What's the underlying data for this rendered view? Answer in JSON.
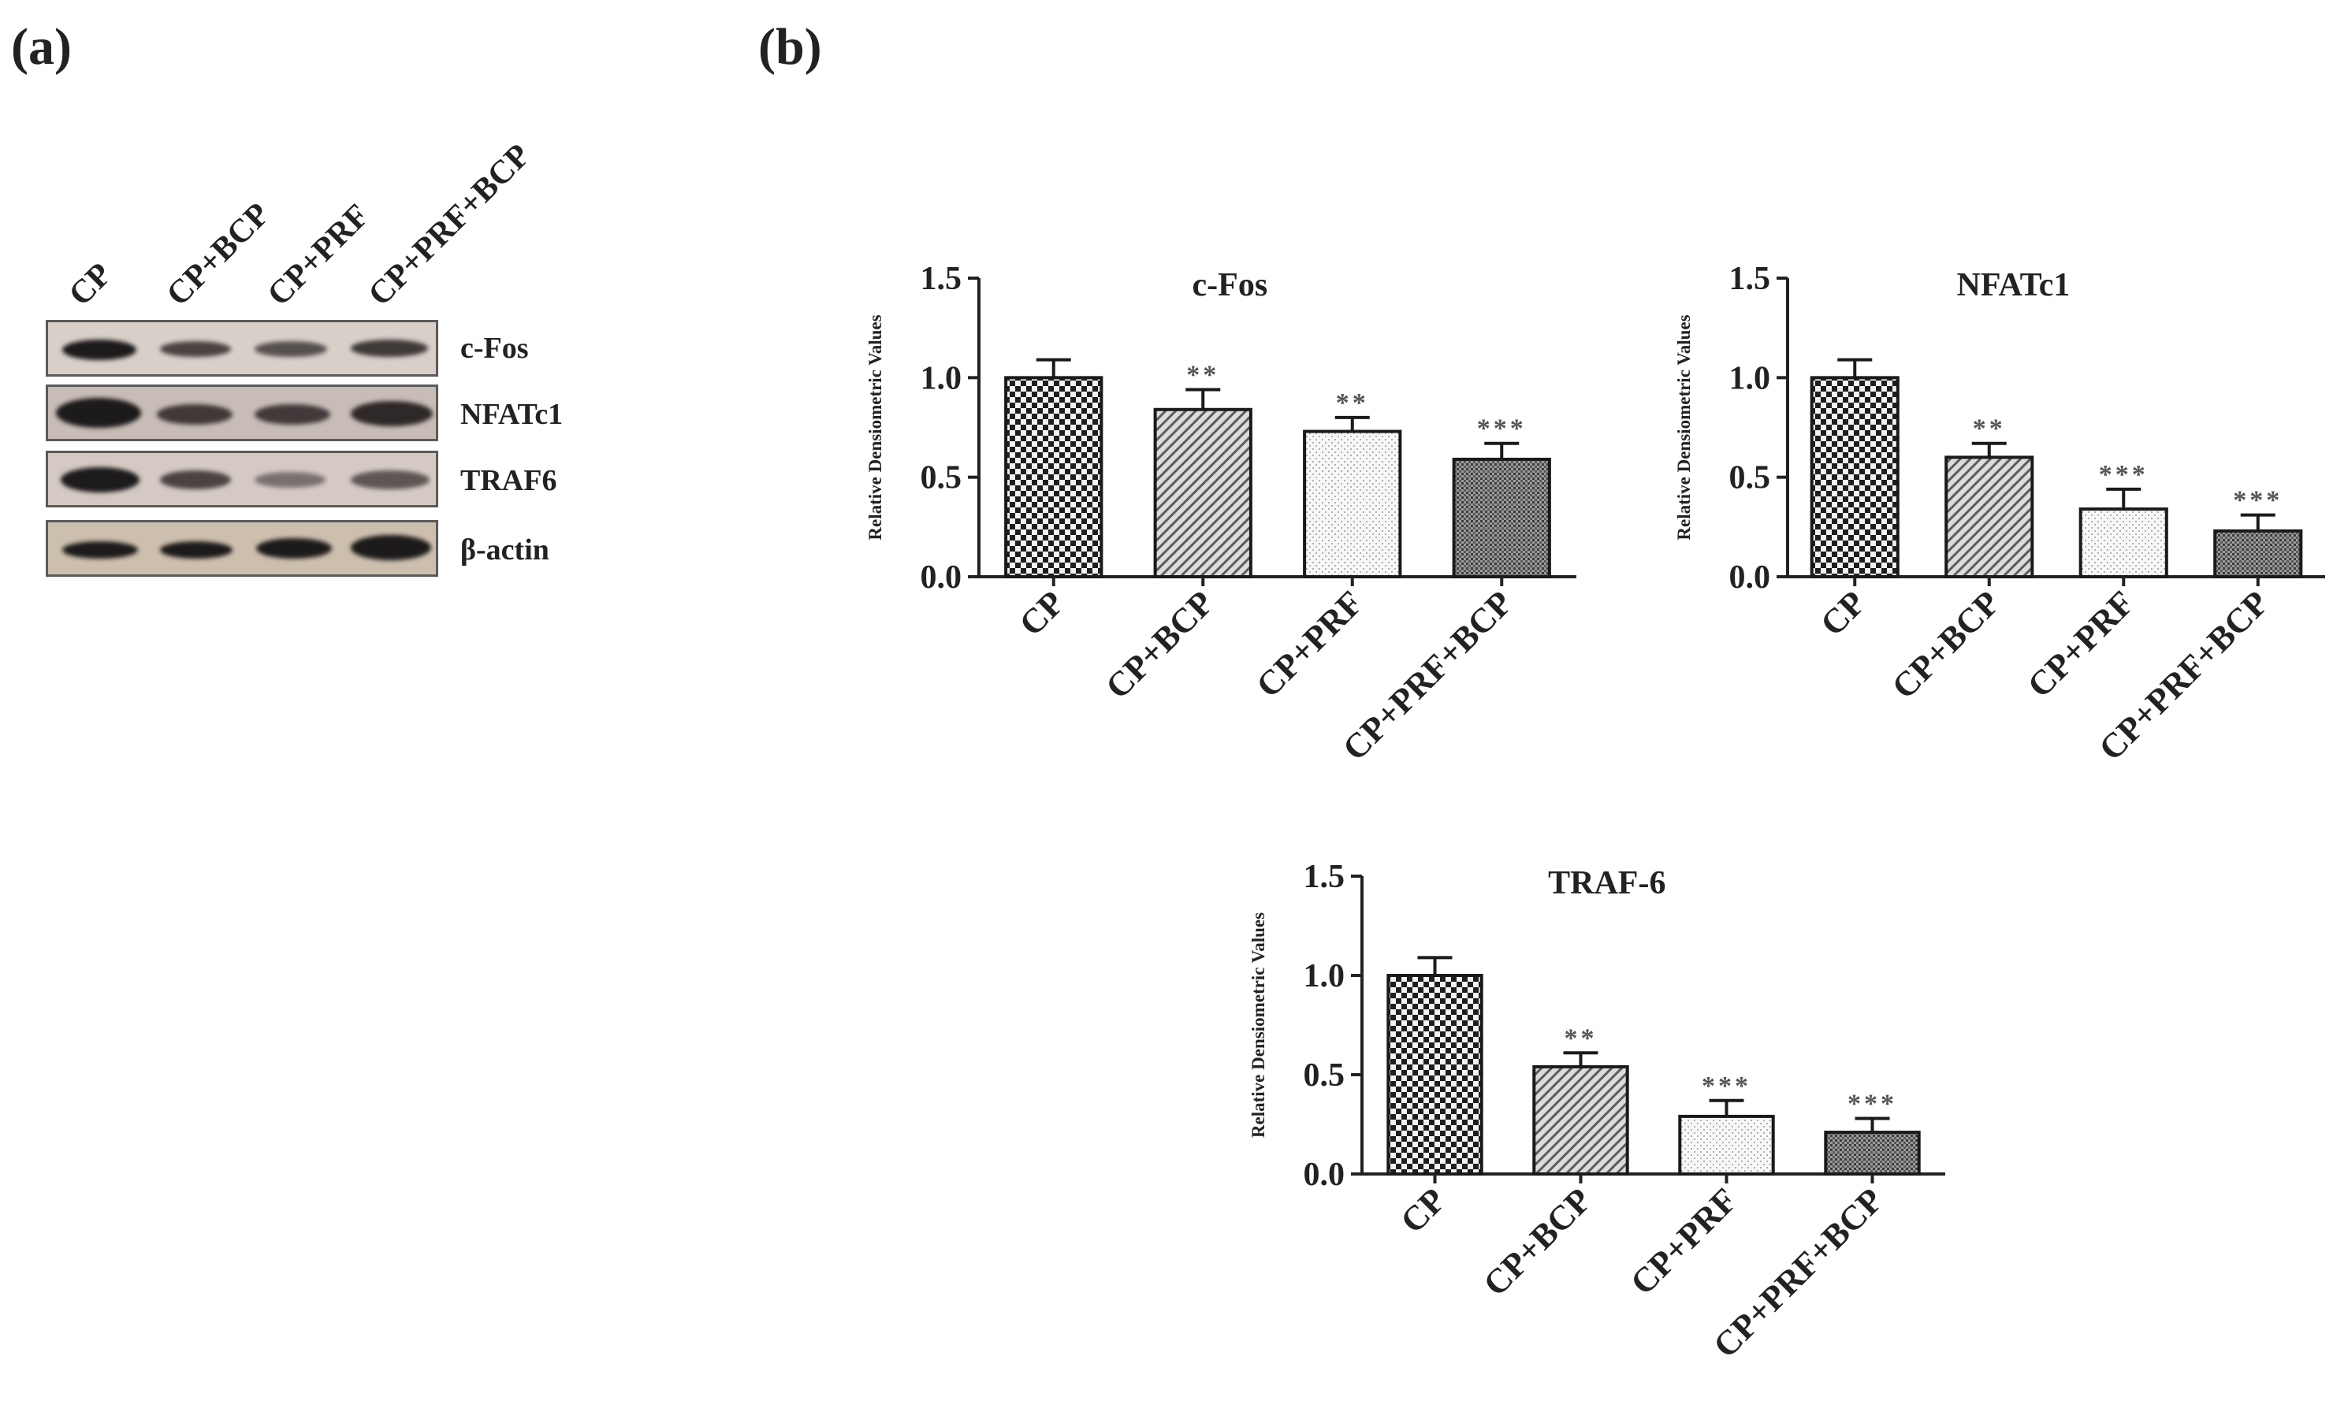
{
  "panels": {
    "a": "(a)",
    "b": "(b)"
  },
  "western_blot": {
    "lanes": [
      "CP",
      "CP+BCP",
      "CP+PRF",
      "CP+PRF+BCP"
    ],
    "rows": [
      {
        "label": "c-Fos",
        "background": "#d8cfc8"
      },
      {
        "label": "NFATc1",
        "background": "#c7bcb6"
      },
      {
        "label": "TRAF6",
        "background": "#d4cac3"
      },
      {
        "label": "β-actin",
        "background": "#cdbfae"
      }
    ]
  },
  "chart_data": [
    {
      "type": "bar",
      "title": "c-Fos",
      "ylabel": "Relative Densiometric Values",
      "xlabel": "",
      "categories": [
        "CP",
        "CP+BCP",
        "CP+PRF",
        "CP+PRF+BCP"
      ],
      "values": [
        1.0,
        0.84,
        0.73,
        0.59
      ],
      "errors": [
        0.09,
        0.1,
        0.07,
        0.08
      ],
      "significance": [
        "",
        "**",
        "**",
        "***"
      ],
      "ylim": [
        0,
        1.5
      ],
      "yticks": [
        "0.0",
        "0.5",
        "1.0",
        "1.5"
      ]
    },
    {
      "type": "bar",
      "title": "NFATc1",
      "ylabel": "Relative Densiometric Values",
      "xlabel": "",
      "categories": [
        "CP",
        "CP+BCP",
        "CP+PRF",
        "CP+PRF+BCP"
      ],
      "values": [
        1.0,
        0.6,
        0.34,
        0.23
      ],
      "errors": [
        0.09,
        0.07,
        0.1,
        0.08
      ],
      "significance": [
        "",
        "**",
        "***",
        "***"
      ],
      "ylim": [
        0,
        1.5
      ],
      "yticks": [
        "0.0",
        "0.5",
        "1.0",
        "1.5"
      ]
    },
    {
      "type": "bar",
      "title": "TRAF-6",
      "ylabel": "Relative Densiometric Values",
      "xlabel": "",
      "categories": [
        "CP",
        "CP+BCP",
        "CP+PRF",
        "CP+PRF+BCP"
      ],
      "values": [
        1.0,
        0.54,
        0.29,
        0.21
      ],
      "errors": [
        0.09,
        0.07,
        0.08,
        0.07
      ],
      "significance": [
        "",
        "**",
        "***",
        "***"
      ],
      "ylim": [
        0,
        1.5
      ],
      "yticks": [
        "0.0",
        "0.5",
        "1.0",
        "1.5"
      ]
    }
  ],
  "colors": {
    "axis": "#222222",
    "significance": "#555555",
    "bar_outline": "#1a1a1a"
  }
}
